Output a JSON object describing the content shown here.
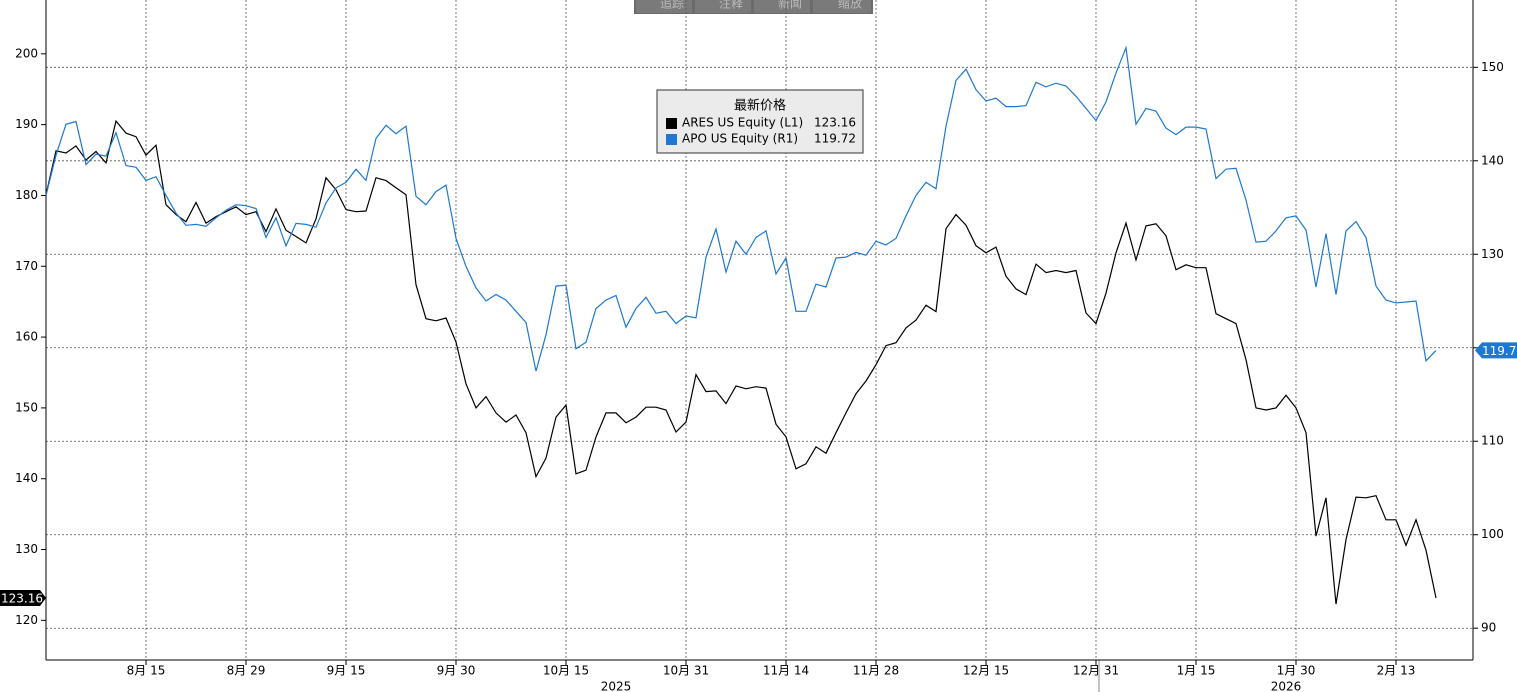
{
  "toolbar": [
    "追踪",
    "注释",
    "新闻",
    "缩放"
  ],
  "chart_data": {
    "type": "line",
    "legend_title": "最新价格",
    "categories": [
      null,
      null,
      null,
      null,
      null,
      null,
      null,
      null,
      null,
      null,
      "8月 15",
      null,
      null,
      null,
      null,
      null,
      null,
      null,
      null,
      null,
      "8月 29",
      null,
      null,
      null,
      null,
      null,
      null,
      null,
      null,
      null,
      "9月 15",
      null,
      null,
      null,
      null,
      null,
      null,
      null,
      null,
      null,
      null,
      "9月 30",
      null,
      null,
      null,
      null,
      null,
      null,
      null,
      null,
      null,
      null,
      "10月 15",
      null,
      null,
      null,
      null,
      null,
      null,
      null,
      null,
      null,
      null,
      null,
      "10月 31",
      null,
      null,
      null,
      null,
      null,
      null,
      null,
      null,
      null,
      "11月 14",
      null,
      null,
      null,
      null,
      null,
      null,
      null,
      null,
      "11月 28",
      null,
      null,
      null,
      null,
      null,
      null,
      null,
      null,
      null,
      null,
      "12月 15",
      null,
      null,
      null,
      null,
      null,
      null,
      null,
      null,
      null,
      null,
      "12月 31",
      null,
      null,
      null,
      null,
      null,
      null,
      null,
      null,
      null,
      "1月 15",
      null,
      null,
      null,
      null,
      null,
      null,
      null,
      null,
      null,
      "1月 30",
      null,
      null,
      null,
      null,
      null,
      null,
      null,
      null,
      null,
      "2月 13",
      null,
      null,
      null,
      null
    ],
    "year_labels": [
      "2025",
      "2026"
    ],
    "series": [
      {
        "name": "ARES US Equity (L1)",
        "color": "#000000",
        "axis": "y",
        "values": [
          180.1,
          186.3,
          186,
          187,
          185,
          186.2,
          184.6,
          190.5,
          188.8,
          188.3,
          185.7,
          187.1,
          178.7,
          177.3,
          176.3,
          179,
          176.1,
          177,
          177.7,
          178.4,
          177.3,
          177.7,
          174.9,
          178.1,
          175.1,
          174.2,
          173.3,
          176.7,
          182.5,
          180.8,
          178,
          177.7,
          177.8,
          182.5,
          182.1,
          181.1,
          180.1,
          167.4,
          162.6,
          162.3,
          162.7,
          159.3,
          153.4,
          150,
          151.6,
          149.3,
          148,
          149,
          146.5,
          140.3,
          142.9,
          148.7,
          150.4,
          140.7,
          141.2,
          145.9,
          149.3,
          149.3,
          147.9,
          148.7,
          150.1,
          150.1,
          149.7,
          146.6,
          148,
          154.7,
          152.3,
          152.4,
          150.6,
          153.1,
          152.7,
          153,
          152.8,
          147.7,
          145.9,
          141.4,
          142.1,
          144.5,
          143.6,
          146.5,
          149.3,
          152,
          153.8,
          156.1,
          158.8,
          159.2,
          161.3,
          162.4,
          164.5,
          163.6,
          175.3,
          177.3,
          175.8,
          172.9,
          171.9,
          172.7,
          168.6,
          166.8,
          166,
          170.3,
          169.1,
          169.4,
          169.1,
          169.4,
          163.4,
          161.9,
          166.2,
          171.9,
          176.1,
          170.9,
          175.7,
          176,
          174.3,
          169.5,
          170.2,
          169.8,
          169.8,
          163.3,
          162.6,
          161.9,
          156.8,
          150,
          149.7,
          150,
          151.8,
          150,
          146.5,
          131.9,
          137.3,
          122.3,
          131.4,
          137.4,
          137.3,
          137.6,
          134.2,
          134.2,
          130.6,
          134.2,
          129.9,
          123.16
        ]
      },
      {
        "name": "APO US Equity (R1)",
        "color": "#1e78d2",
        "axis": "y2",
        "values": [
          136.3,
          140.6,
          143.9,
          144.2,
          139.6,
          140.7,
          140.5,
          143,
          139.5,
          139.3,
          137.9,
          138.3,
          136.3,
          134.4,
          133.1,
          133.2,
          133,
          133.9,
          134.7,
          135.3,
          135.2,
          134.9,
          131.8,
          133.9,
          130.9,
          133.3,
          133.2,
          132.9,
          135.5,
          137.1,
          137.7,
          139.1,
          137.9,
          142.4,
          143.8,
          142.9,
          143.7,
          136.2,
          135.3,
          136.7,
          137.4,
          131.7,
          128.7,
          126.4,
          125,
          125.7,
          125.1,
          123.9,
          122.7,
          117.5,
          121.4,
          126.6,
          126.7,
          119.9,
          120.6,
          124.2,
          125.1,
          125.6,
          122.2,
          124.2,
          125.4,
          123.7,
          123.9,
          122.6,
          123.4,
          123.2,
          129.7,
          132.7,
          128.1,
          131.4,
          130,
          131.8,
          132.5,
          127.9,
          129.6,
          123.9,
          123.9,
          126.8,
          126.5,
          129.6,
          129.7,
          130.2,
          129.9,
          131.4,
          131,
          131.7,
          134.1,
          136.3,
          137.7,
          137,
          143.7,
          148.6,
          149.8,
          147.6,
          146.4,
          146.7,
          145.8,
          145.8,
          145.9,
          148.4,
          147.9,
          148.3,
          148,
          146.9,
          145.6,
          144.3,
          146.3,
          149.4,
          152.1,
          143.9,
          145.6,
          145.3,
          143.5,
          142.8,
          143.6,
          143.6,
          143.4,
          138.1,
          139.1,
          139.2,
          135.8,
          131.3,
          131.4,
          132.5,
          133.9,
          134.1,
          132.6,
          126.5,
          132.2,
          125.7,
          132.5,
          133.5,
          131.8,
          126.6,
          125.1,
          124.8,
          124.9,
          125,
          118.6,
          119.72
        ]
      }
    ],
    "ylim": [
      114.4,
      207.6
    ],
    "yticks": [
      120,
      130,
      140,
      150,
      160,
      170,
      180,
      190,
      200
    ],
    "y2lim": [
      86.6,
      157.2
    ],
    "y2ticks": [
      90,
      100,
      110,
      120,
      130,
      140,
      150
    ],
    "grid": true
  }
}
